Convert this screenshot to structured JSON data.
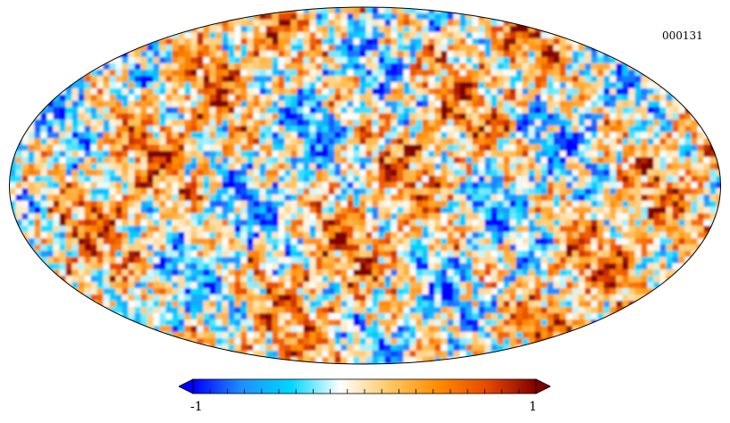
{
  "map": {
    "projection": "mollweide",
    "identifier": "000131"
  },
  "colorbar": {
    "min_label": "-1",
    "max_label": "1",
    "range": [
      -1,
      1
    ],
    "colormap": [
      "#0000ff",
      "#1e90ff",
      "#00d7ff",
      "#ffffff",
      "#ffc866",
      "#ff8c00",
      "#e84800",
      "#800000"
    ]
  }
}
